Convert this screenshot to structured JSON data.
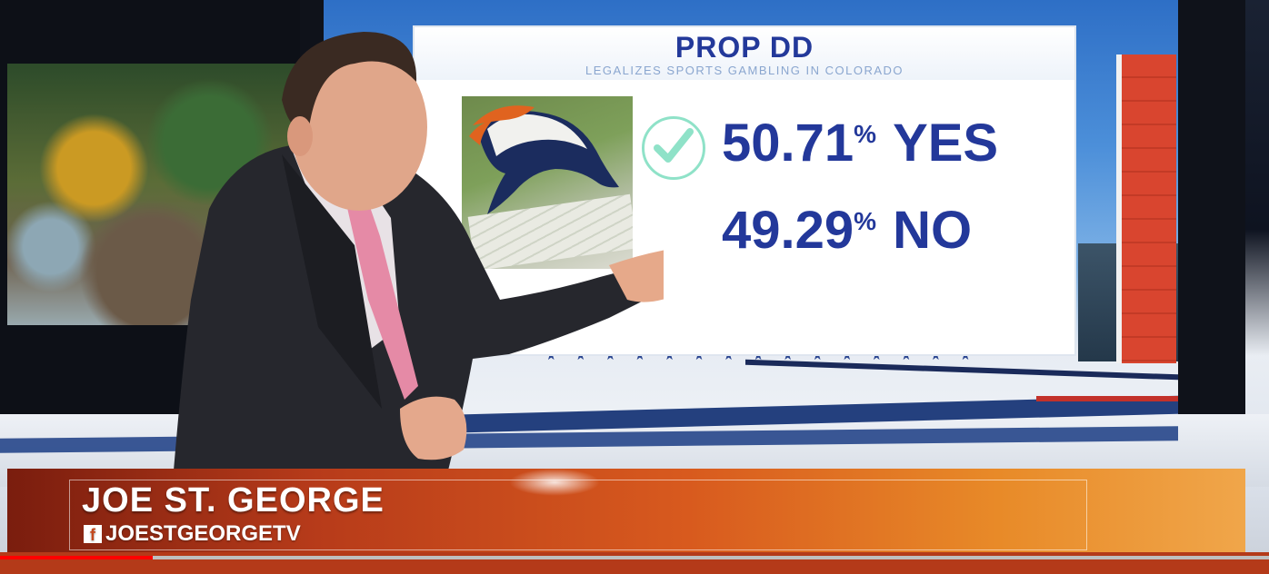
{
  "graphic": {
    "title": "PROP DD",
    "subtitle": "LEGALIZES SPORTS GAMBLING IN COLORADO",
    "yes": {
      "percent": "50.71",
      "sign": "%",
      "label": "YES"
    },
    "no": {
      "percent": "49.29",
      "sign": "%",
      "label": "NO"
    },
    "winner_icon": "check-icon",
    "check_color": "#8fe2c8",
    "text_color": "#23389a"
  },
  "lower_third": {
    "name": "JOE ST. GEORGE",
    "handle": "JOESTGEORGETV",
    "social_icon": "facebook-icon",
    "bar_colors": [
      "#7a1d0e",
      "#d85a1e",
      "#f0a64a"
    ]
  },
  "playback": {
    "progress": 0.12
  }
}
